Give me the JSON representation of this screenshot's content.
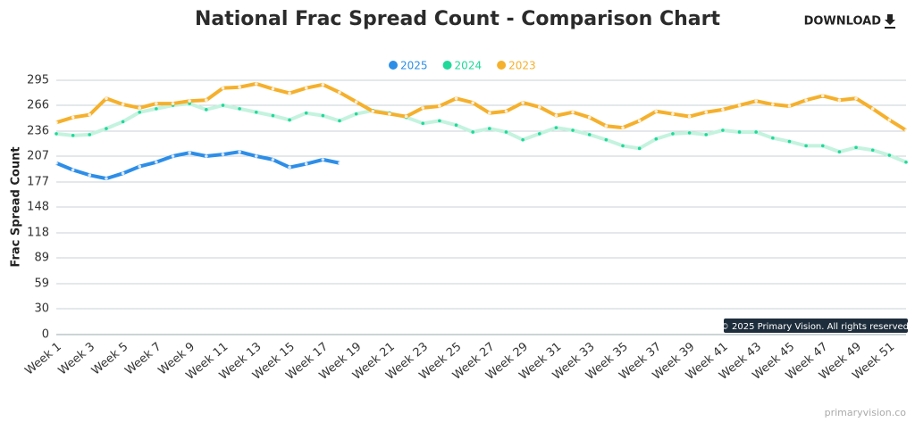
{
  "chart_data": {
    "type": "line",
    "title": "National Frac Spread Count - Comparison Chart",
    "download_label": "DOWNLOAD",
    "y_label": "Frac Spread Count",
    "credit": "© 2025 Primary Vision. All rights reserved.",
    "footer": "primaryvision.co",
    "categories": [
      "Week 1",
      null,
      "Week 3",
      null,
      "Week 5",
      null,
      "Week 7",
      null,
      "Week 9",
      null,
      "Week 11",
      null,
      "Week 13",
      null,
      "Week 15",
      null,
      "Week 17",
      null,
      "Week 19",
      null,
      "Week 21",
      null,
      "Week 23",
      null,
      "Week 25",
      null,
      "Week 27",
      null,
      "Week 29",
      null,
      "Week 31",
      null,
      "Week 33",
      null,
      "Week 35",
      null,
      "Week 37",
      null,
      "Week 39",
      null,
      "Week 41",
      null,
      "Week 43",
      null,
      "Week 45",
      null,
      "Week 47",
      null,
      "Week 49",
      null,
      "Week 51",
      null
    ],
    "ylim": [
      0,
      295
    ],
    "yticks": [
      0,
      30,
      59,
      89,
      118,
      148,
      177,
      207,
      236,
      266,
      295
    ],
    "grid": true,
    "legend_position": "top",
    "series": [
      {
        "name": "2025",
        "color": "#2d8ee8",
        "line_color": "#2d8ee8",
        "values": [
          199,
          191,
          185,
          181,
          187,
          195,
          200,
          207,
          211,
          207,
          209,
          212,
          207,
          203,
          194,
          198,
          203,
          199,
          null,
          null,
          null,
          null,
          null,
          null,
          null,
          null,
          null,
          null,
          null,
          null,
          null,
          null,
          null,
          null,
          null,
          null,
          null,
          null,
          null,
          null,
          null,
          null,
          null,
          null,
          null,
          null,
          null,
          null,
          null,
          null,
          null,
          null
        ]
      },
      {
        "name": "2024",
        "color": "#1fd99a",
        "line_color": "#c4f3df",
        "values": [
          233,
          231,
          232,
          239,
          247,
          258,
          262,
          266,
          268,
          261,
          266,
          262,
          258,
          254,
          249,
          257,
          254,
          248,
          256,
          260,
          257,
          252,
          245,
          248,
          243,
          235,
          239,
          235,
          226,
          233,
          240,
          237,
          232,
          226,
          219,
          216,
          227,
          233,
          234,
          232,
          237,
          235,
          235,
          228,
          224,
          219,
          219,
          212,
          217,
          214,
          208,
          200
        ]
      },
      {
        "name": "2023",
        "color": "#f5b02c",
        "line_color": "#f5b02c",
        "values": [
          246,
          252,
          255,
          274,
          267,
          263,
          268,
          268,
          271,
          272,
          286,
          287,
          291,
          285,
          280,
          286,
          290,
          281,
          270,
          259,
          256,
          253,
          263,
          265,
          274,
          269,
          257,
          259,
          269,
          264,
          254,
          258,
          252,
          242,
          240,
          248,
          259,
          256,
          253,
          258,
          261,
          266,
          271,
          267,
          265,
          272,
          277,
          272,
          274,
          262,
          249,
          237
        ]
      }
    ]
  }
}
